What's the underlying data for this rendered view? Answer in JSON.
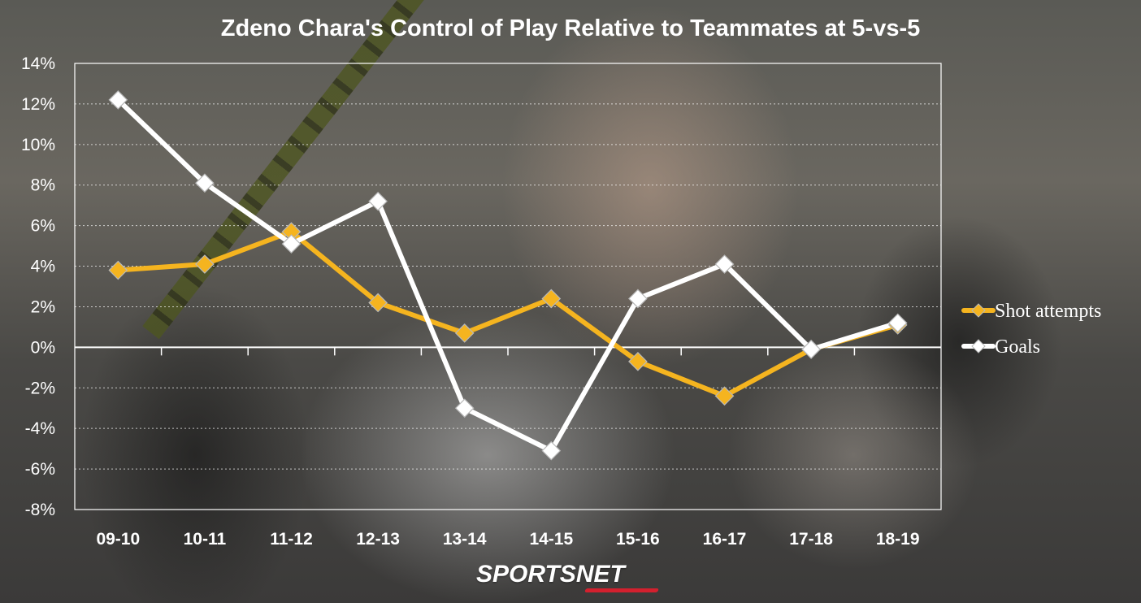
{
  "chart_data": {
    "type": "line",
    "title": "Zdeno Chara's Control of Play Relative to Teammates at 5-vs-5",
    "categories": [
      "09-10",
      "10-11",
      "11-12",
      "12-13",
      "13-14",
      "14-15",
      "15-16",
      "16-17",
      "17-18",
      "18-19"
    ],
    "series": [
      {
        "name": "Shot attempts",
        "values": [
          3.8,
          4.1,
          5.7,
          2.2,
          0.7,
          2.4,
          -0.7,
          -2.4,
          -0.1,
          1.1
        ],
        "color": "#f5b41f"
      },
      {
        "name": "Goals",
        "values": [
          12.2,
          8.1,
          5.1,
          7.2,
          -3.0,
          -5.1,
          2.4,
          4.1,
          -0.1,
          1.2
        ],
        "color": "#ffffff"
      }
    ],
    "ylim": [
      -8,
      14
    ],
    "yticks": [
      -8,
      -6,
      -4,
      -2,
      0,
      2,
      4,
      6,
      8,
      10,
      12,
      14
    ],
    "y_format": "percent",
    "xlabel": "",
    "ylabel": "",
    "grid": "horizontal-dotted",
    "legend_position": "right"
  },
  "branding": {
    "logo_left": "SPORTS",
    "logo_right": "NET"
  }
}
